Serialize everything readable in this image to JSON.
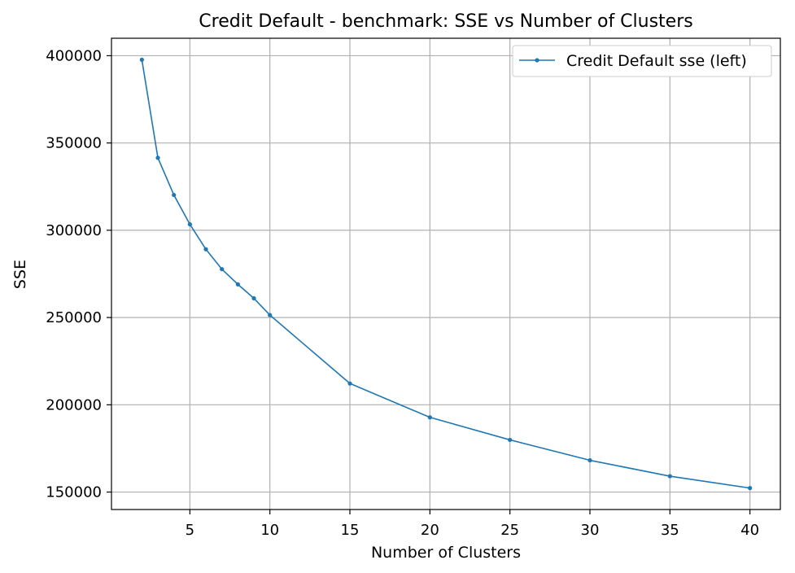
{
  "chart_data": {
    "type": "line",
    "title": "Credit Default - benchmark: SSE vs Number of Clusters",
    "xlabel": "Number of Clusters",
    "ylabel": "SSE",
    "xlim": [
      0.1,
      41.9
    ],
    "ylim": [
      140000,
      410000
    ],
    "xticks": [
      5,
      10,
      15,
      20,
      25,
      30,
      35,
      40
    ],
    "yticks": [
      150000,
      200000,
      250000,
      300000,
      350000,
      400000
    ],
    "xtick_labels": [
      "5",
      "10",
      "15",
      "20",
      "25",
      "30",
      "35",
      "40"
    ],
    "ytick_labels": [
      "150000",
      "200000",
      "250000",
      "300000",
      "350000",
      "400000"
    ],
    "grid": true,
    "legend_position": "top-right",
    "series": [
      {
        "name": "Credit Default sse (left)",
        "color": "#1f77b4",
        "marker": "dot",
        "x": [
          2,
          3,
          4,
          5,
          6,
          7,
          8,
          9,
          10,
          15,
          20,
          25,
          30,
          35,
          40
        ],
        "y": [
          397700,
          341500,
          320200,
          303400,
          289100,
          277700,
          269000,
          261000,
          251400,
          212200,
          192800,
          179900,
          168200,
          159100,
          152300
        ]
      }
    ]
  }
}
